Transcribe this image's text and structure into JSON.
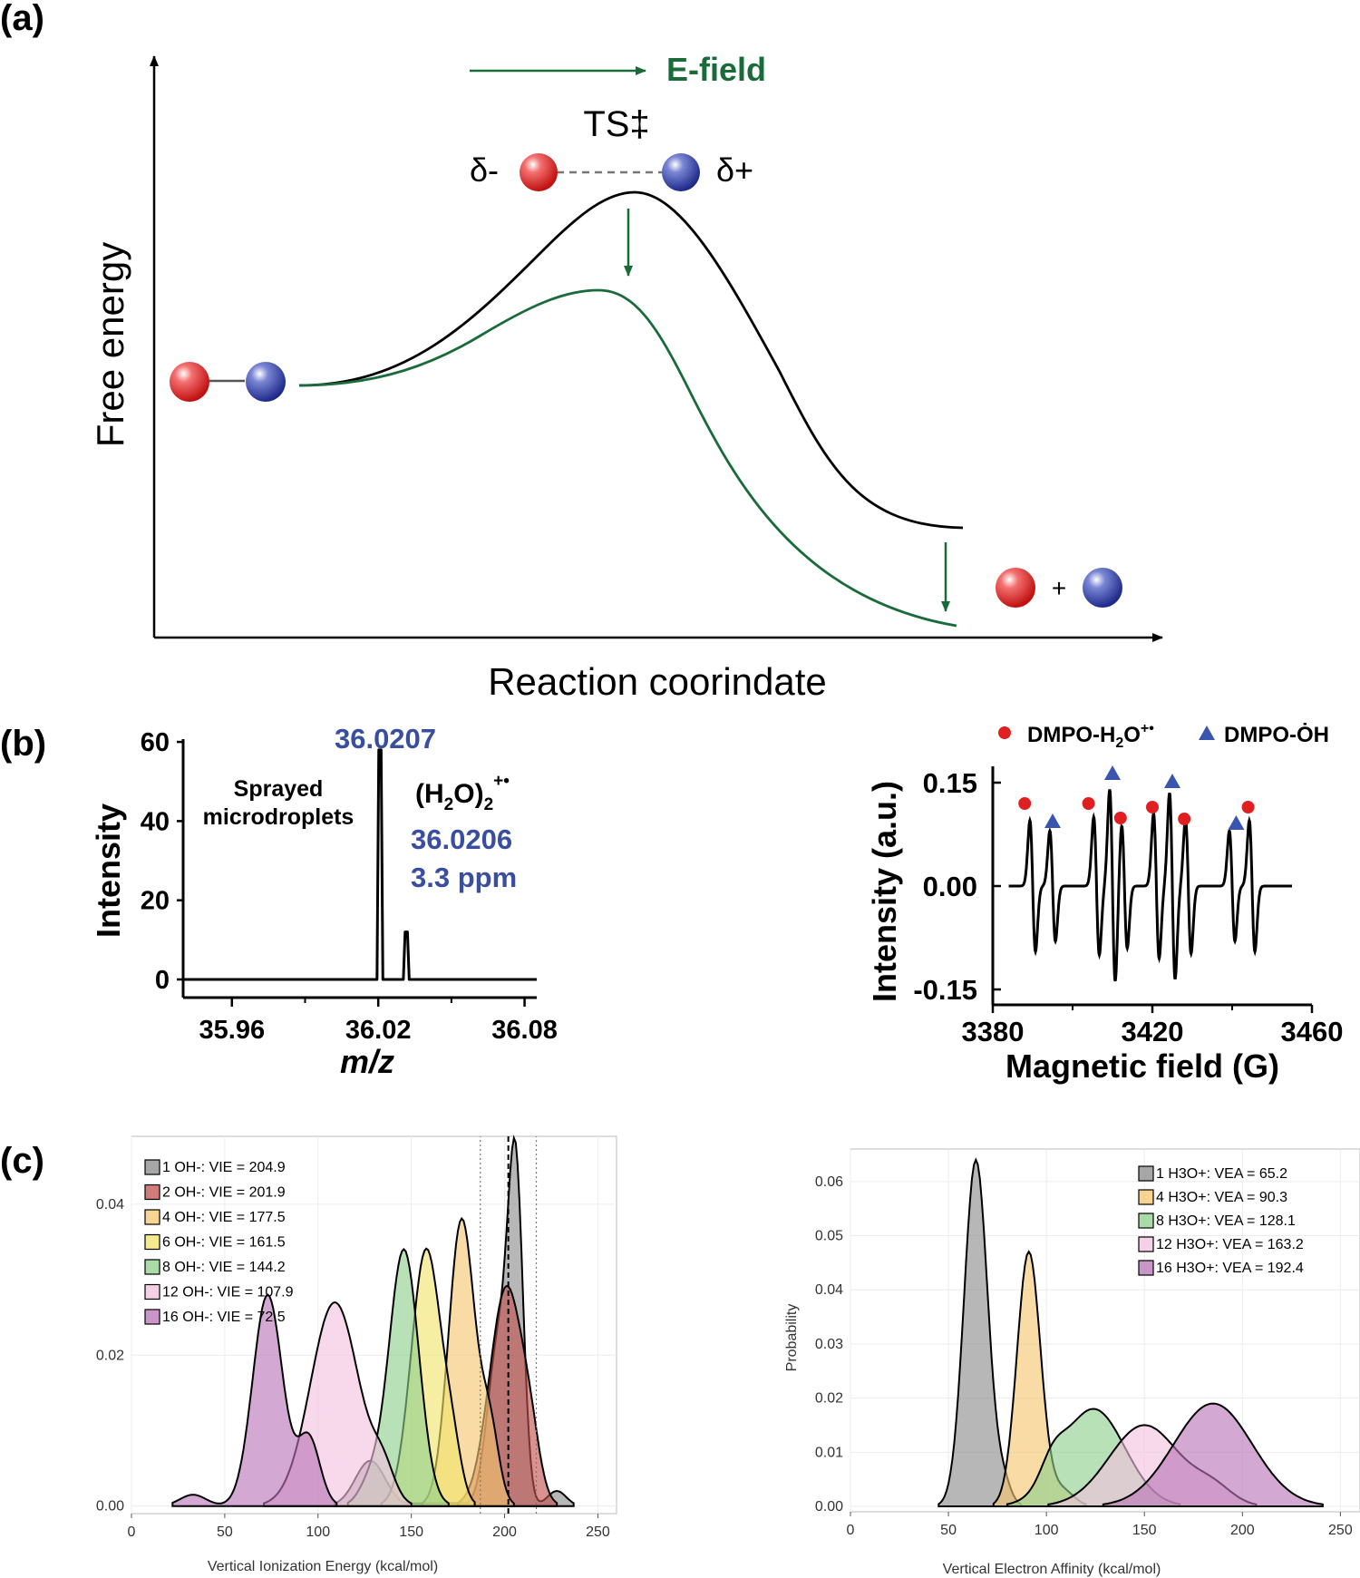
{
  "panel_labels": {
    "a": "(a)",
    "b": "(b)",
    "c": "(c)"
  },
  "colors": {
    "green": "#1a6b3a",
    "blue_text": "#3a4ea0",
    "red_marker": "#e02020",
    "blue_marker": "#3a55b0",
    "gray": "#8a8a8a",
    "red": "#c0504d",
    "orange": "#f5c66e",
    "yellow": "#f0e36a",
    "green_fill": "#8dcf8a",
    "pink": "#f2c2de",
    "purple": "#b873b6"
  },
  "panel_a": {
    "efield_label": "E-field",
    "ts_label": "TS‡",
    "delta_minus": "δ-",
    "delta_plus": "δ+",
    "plus": "+",
    "ylabel": "Free energy",
    "xlabel": "Reaction coorindate"
  },
  "chart_data": [
    {
      "id": "ms",
      "type": "line",
      "xlabel": "m/z",
      "ylabel": "Intensity",
      "xlim": [
        35.94,
        36.085
      ],
      "ylim": [
        0,
        65
      ],
      "xticks": [
        35.96,
        36.02,
        36.08
      ],
      "xtick_labels": [
        "35.96",
        "36.02",
        "36.08"
      ],
      "yticks": [
        0,
        20,
        40,
        60
      ],
      "ytick_labels": [
        "0",
        "20",
        "40",
        "60"
      ],
      "peaks": [
        {
          "x": 36.0207,
          "y": 58
        },
        {
          "x": 36.0315,
          "y": 12
        }
      ],
      "annotations": {
        "peak_label": "36.0207",
        "sample": "Sprayed microdroplets",
        "formula": "(H2O)2+•",
        "calc_mass": "36.0206",
        "error": "3.3 ppm"
      }
    },
    {
      "id": "epr",
      "type": "line",
      "xlabel": "Magnetic field (G)",
      "ylabel": "Intensity (a.u.)",
      "xlim": [
        3380,
        3460
      ],
      "ylim": [
        -0.17,
        0.17
      ],
      "xticks": [
        3380,
        3420,
        3460
      ],
      "xtick_labels": [
        "3380",
        "3420",
        "3460"
      ],
      "yticks": [
        0.15,
        0.0,
        -0.15
      ],
      "ytick_labels": [
        "0.15",
        "0.00",
        "-0.15"
      ],
      "legend": [
        {
          "marker": "circle",
          "label": "DMPO-H2O+•"
        },
        {
          "marker": "triangle",
          "label": "DMPO-ȮH"
        }
      ],
      "lines_circle": [
        {
          "x": 3390,
          "a": 0.095
        },
        {
          "x": 3406,
          "a": 0.1
        },
        {
          "x": 3413,
          "a": 0.09
        },
        {
          "x": 3421,
          "a": 0.105
        },
        {
          "x": 3429,
          "a": 0.098
        },
        {
          "x": 3445,
          "a": 0.095
        }
      ],
      "lines_triangle": [
        {
          "x": 3395,
          "a": 0.08
        },
        {
          "x": 3410,
          "a": 0.14
        },
        {
          "x": 3425,
          "a": 0.135
        },
        {
          "x": 3440,
          "a": 0.08
        }
      ],
      "markers_circle": [
        3388,
        3404,
        3412,
        3420,
        3428,
        3444
      ],
      "markers_triangle": [
        3395,
        3410,
        3425,
        3441
      ]
    },
    {
      "id": "vie",
      "type": "area",
      "xlabel": "Vertical Ionization Energy (kcal/mol)",
      "ylabel": "",
      "xlim": [
        0,
        260
      ],
      "ylim": [
        -0.001,
        0.049
      ],
      "xticks": [
        0,
        50,
        100,
        150,
        200,
        250
      ],
      "xtick_labels": [
        "0",
        "50",
        "100",
        "150",
        "200",
        "250"
      ],
      "yticks": [
        0,
        0.02,
        0.04
      ],
      "ytick_labels": [
        "0.00",
        "0.02",
        "0.04"
      ],
      "vlines": {
        "dashed": 202,
        "dotted": [
          187,
          217
        ]
      },
      "series": [
        {
          "name": "1 OH-: VIE = 204.9",
          "color": "#8a8a8a",
          "peaks": [
            [
              206,
              0.041,
              4
            ],
            [
              197,
              0.022,
              6
            ],
            [
              128,
              0.006,
              8
            ],
            [
              228,
              0.002,
              5
            ]
          ]
        },
        {
          "name": "2 OH-: VIE = 201.9",
          "color": "#c0504d",
          "peaks": [
            [
              201,
              0.029,
              9
            ],
            [
              214,
              0.005,
              5
            ]
          ]
        },
        {
          "name": "4 OH-: VIE = 177.5",
          "color": "#f5c66e",
          "peaks": [
            [
              177,
              0.038,
              7
            ],
            [
              192,
              0.01,
              5
            ]
          ]
        },
        {
          "name": "6 OH-: VIE = 161.5",
          "color": "#f0e36a",
          "peaks": [
            [
              158,
              0.034,
              8
            ],
            [
              172,
              0.006,
              5
            ]
          ]
        },
        {
          "name": "8 OH-: VIE = 144.2",
          "color": "#8dcf8a",
          "peaks": [
            [
              146,
              0.034,
              8
            ],
            [
              128,
              0.003,
              6
            ]
          ]
        },
        {
          "name": "12 OH-: VIE = 107.9",
          "color": "#f2c2de",
          "peaks": [
            [
              109,
              0.027,
              13
            ],
            [
              135,
              0.004,
              6
            ]
          ]
        },
        {
          "name": "16 OH-: VIE = 72.5",
          "color": "#b873b6",
          "peaks": [
            [
              73,
              0.028,
              8
            ],
            [
              95,
              0.009,
              6
            ],
            [
              33,
              0.0015,
              7
            ]
          ]
        }
      ]
    },
    {
      "id": "vea",
      "type": "area",
      "xlabel": "Vertical Electron Affinity (kcal/mol)",
      "ylabel": "Probability",
      "xlim": [
        0,
        260
      ],
      "ylim": [
        -0.001,
        0.066
      ],
      "xticks": [
        0,
        50,
        100,
        150,
        200,
        250
      ],
      "xtick_labels": [
        "0",
        "50",
        "100",
        "150",
        "200",
        "250"
      ],
      "yticks": [
        0,
        0.01,
        0.02,
        0.03,
        0.04,
        0.05,
        0.06
      ],
      "ytick_labels": [
        "0.00",
        "0.01",
        "0.02",
        "0.03",
        "0.04",
        "0.05",
        "0.06"
      ],
      "series": [
        {
          "name": "1 H3O+:   VEA = 65.2",
          "color": "#8a8a8a",
          "peaks": [
            [
              64,
              0.064,
              6
            ],
            [
              78,
              0.004,
              4
            ]
          ]
        },
        {
          "name": "4 H3O+:   VEA = 90.3",
          "color": "#f5c66e",
          "peaks": [
            [
              91,
              0.047,
              6
            ],
            [
              108,
              0.003,
              6
            ]
          ]
        },
        {
          "name": "8 H3O+:   VEA = 128.1",
          "color": "#8dcf8a",
          "peaks": [
            [
              124,
              0.018,
              16
            ],
            [
              103,
              0.004,
              6
            ]
          ]
        },
        {
          "name": "12 H3O+: VEA = 163.2",
          "color": "#f2c2de",
          "peaks": [
            [
              150,
              0.015,
              18
            ],
            [
              185,
              0.003,
              10
            ]
          ]
        },
        {
          "name": "16 H3O+: VEA = 192.4",
          "color": "#b873b6",
          "peaks": [
            [
              185,
              0.019,
              20
            ]
          ]
        }
      ]
    }
  ]
}
